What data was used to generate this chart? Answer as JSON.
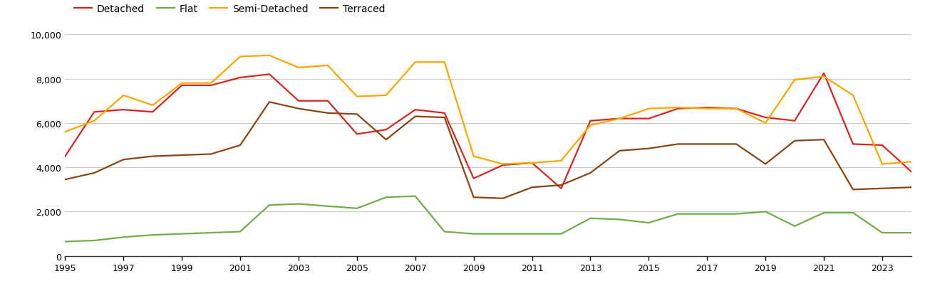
{
  "years": [
    1995,
    1996,
    1997,
    1998,
    1999,
    2000,
    2001,
    2002,
    2003,
    2004,
    2005,
    2006,
    2007,
    2008,
    2009,
    2010,
    2011,
    2012,
    2013,
    2014,
    2015,
    2016,
    2017,
    2018,
    2019,
    2020,
    2021,
    2022,
    2023,
    2024
  ],
  "detached": [
    4500,
    6500,
    6600,
    6500,
    7700,
    7700,
    8050,
    8200,
    7000,
    7000,
    5500,
    5700,
    6600,
    6450,
    3500,
    4100,
    4200,
    3050,
    6100,
    6200,
    6200,
    6650,
    6700,
    6650,
    6250,
    6100,
    8250,
    5050,
    5000,
    3800
  ],
  "flat": [
    650,
    700,
    850,
    950,
    1000,
    1050,
    1100,
    2300,
    2350,
    2250,
    2150,
    2650,
    2700,
    1100,
    1000,
    1000,
    1000,
    1000,
    1700,
    1650,
    1500,
    1900,
    1900,
    1900,
    2000,
    1350,
    1950,
    1950,
    1050,
    1050
  ],
  "semi_detached": [
    5600,
    6100,
    7250,
    6800,
    7800,
    7800,
    9000,
    9050,
    8500,
    8600,
    7200,
    7250,
    8750,
    8750,
    4500,
    4150,
    4200,
    4300,
    5900,
    6200,
    6650,
    6700,
    6650,
    6650,
    6000,
    7950,
    8100,
    7250,
    4150,
    4250
  ],
  "terraced": [
    3450,
    3750,
    4350,
    4500,
    4550,
    4600,
    5000,
    6950,
    6650,
    6450,
    6400,
    5250,
    6300,
    6250,
    2650,
    2600,
    3100,
    3200,
    3750,
    4750,
    4850,
    5050,
    5050,
    5050,
    4150,
    5200,
    5250,
    3000,
    3050,
    3100
  ],
  "line_colors": {
    "detached": "#d9261c",
    "flat": "#70ad47",
    "semi_detached": "#ffa500",
    "terraced": "#8b4513"
  },
  "legend_labels": [
    "Detached",
    "Flat",
    "Semi-Detached",
    "Terraced"
  ],
  "ylim": [
    0,
    10000
  ],
  "yticks": [
    0,
    2000,
    4000,
    6000,
    8000,
    10000
  ],
  "background_color": "#ffffff",
  "grid_color": "#cccccc",
  "linewidth": 1.6
}
